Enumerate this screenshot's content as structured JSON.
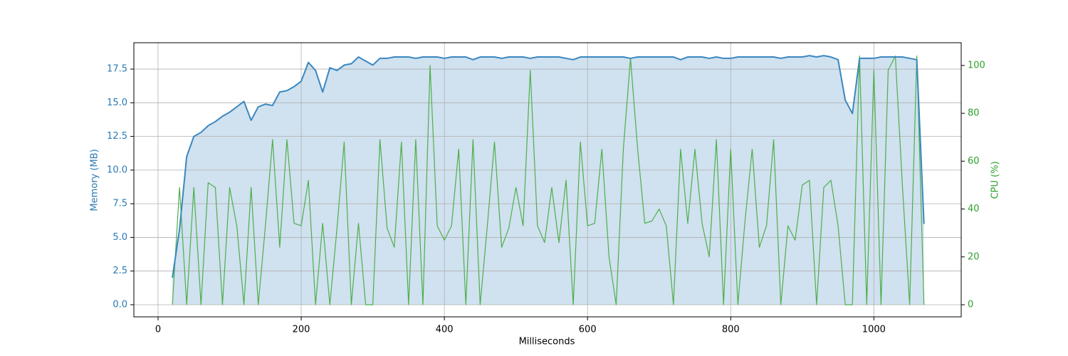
{
  "chart_data": {
    "type": "line",
    "xlabel": "Milliseconds",
    "ylabel": "Memory (MB)",
    "y2label": "CPU (%)",
    "x": [
      20,
      30,
      40,
      50,
      60,
      70,
      80,
      90,
      100,
      110,
      120,
      130,
      140,
      150,
      160,
      170,
      180,
      190,
      200,
      210,
      220,
      230,
      240,
      250,
      260,
      270,
      280,
      290,
      300,
      310,
      320,
      330,
      340,
      350,
      360,
      370,
      380,
      390,
      400,
      410,
      420,
      430,
      440,
      450,
      460,
      470,
      480,
      490,
      500,
      510,
      520,
      530,
      540,
      550,
      560,
      570,
      580,
      590,
      600,
      610,
      620,
      630,
      640,
      650,
      660,
      670,
      680,
      690,
      700,
      710,
      720,
      730,
      740,
      750,
      760,
      770,
      780,
      790,
      800,
      810,
      820,
      830,
      840,
      850,
      860,
      870,
      880,
      890,
      900,
      910,
      920,
      930,
      940,
      950,
      960,
      970,
      980,
      990,
      1000,
      1010,
      1020,
      1030,
      1040,
      1050,
      1060,
      1070
    ],
    "series": [
      {
        "name": "Memory (MB)",
        "color": "#3a87c0",
        "fill": "#d0e1ef",
        "axis": "y",
        "values": [
          2.0,
          5.6,
          11.0,
          12.5,
          12.8,
          13.3,
          13.6,
          14.0,
          14.3,
          14.7,
          15.1,
          13.7,
          14.7,
          14.9,
          14.8,
          15.8,
          15.9,
          16.2,
          16.6,
          18.0,
          17.4,
          15.8,
          17.6,
          17.4,
          17.8,
          17.9,
          18.4,
          18.1,
          17.8,
          18.3,
          18.3,
          18.4,
          18.4,
          18.4,
          18.3,
          18.4,
          18.4,
          18.4,
          18.3,
          18.4,
          18.4,
          18.4,
          18.2,
          18.4,
          18.4,
          18.4,
          18.3,
          18.4,
          18.4,
          18.4,
          18.3,
          18.4,
          18.4,
          18.4,
          18.4,
          18.3,
          18.2,
          18.4,
          18.4,
          18.4,
          18.4,
          18.4,
          18.4,
          18.4,
          18.3,
          18.4,
          18.4,
          18.4,
          18.4,
          18.4,
          18.4,
          18.2,
          18.4,
          18.4,
          18.4,
          18.3,
          18.4,
          18.3,
          18.3,
          18.4,
          18.4,
          18.4,
          18.4,
          18.4,
          18.4,
          18.3,
          18.4,
          18.4,
          18.4,
          18.5,
          18.4,
          18.5,
          18.4,
          18.2,
          15.2,
          14.2,
          18.3,
          18.3,
          18.3,
          18.4,
          18.4,
          18.4,
          18.4,
          18.3,
          18.2,
          6.0
        ]
      },
      {
        "name": "CPU (%)",
        "color": "#4daf4a",
        "axis": "y2",
        "values": [
          0,
          49,
          0,
          49,
          0,
          51,
          49,
          0,
          49,
          33,
          0,
          49,
          0,
          33,
          69,
          24,
          69,
          34,
          33,
          52,
          0,
          34,
          0,
          32,
          68,
          0,
          34,
          0,
          0,
          69,
          32,
          24,
          68,
          0,
          69,
          0,
          100,
          33,
          27,
          33,
          65,
          0,
          69,
          0,
          33,
          68,
          24,
          32,
          49,
          33,
          98,
          33,
          26,
          49,
          26,
          52,
          0,
          68,
          33,
          34,
          65,
          20,
          0,
          65,
          103,
          65,
          34,
          35,
          40,
          33,
          0,
          65,
          34,
          65,
          34,
          20,
          69,
          0,
          65,
          0,
          35,
          65,
          24,
          33,
          69,
          0,
          33,
          27,
          50,
          52,
          0,
          49,
          52,
          33,
          0,
          0,
          104,
          0,
          98,
          0,
          98,
          104,
          49,
          0,
          104,
          0
        ]
      }
    ],
    "xlim": [
      -33.8,
      1122
    ],
    "xticks": [
      0,
      200,
      400,
      600,
      800,
      1000
    ],
    "ylim": [
      -0.9,
      19.46
    ],
    "yticks": [
      {
        "value": 0,
        "label": "0.0"
      },
      2.5,
      {
        "value": 5,
        "label": "5.0"
      },
      7.5,
      {
        "value": 10,
        "label": "10.0"
      },
      12.5,
      {
        "value": 15,
        "label": "15.0"
      },
      17.5
    ],
    "y2lim": [
      -5.06,
      109.5
    ],
    "y2ticks": [
      0,
      20,
      40,
      60,
      80,
      100
    ],
    "grid": true
  }
}
